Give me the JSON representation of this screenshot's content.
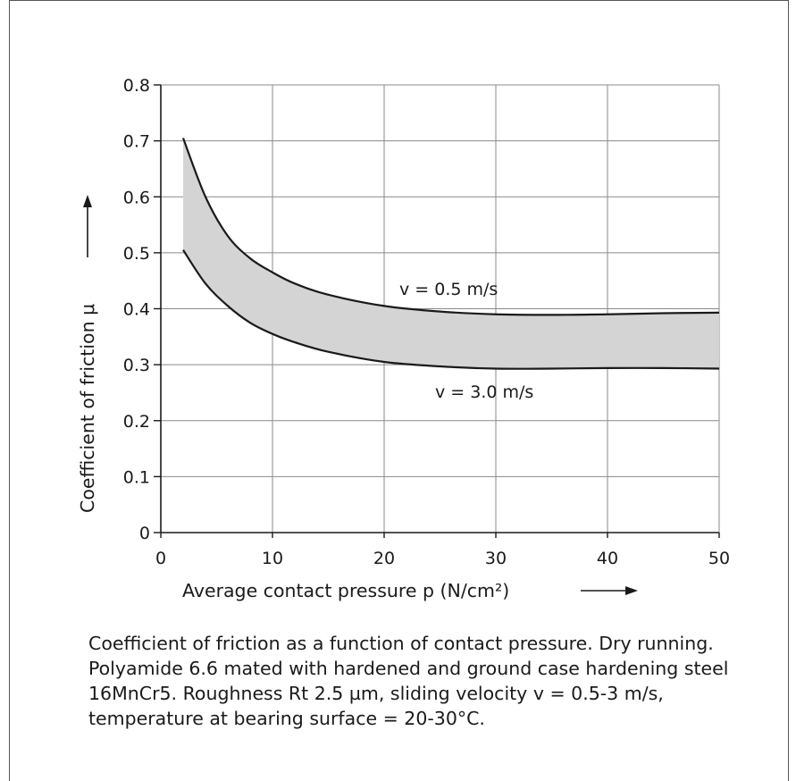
{
  "chart_data": {
    "type": "area",
    "title": "",
    "xlabel": "Average contact pressure p (N/cm²)",
    "ylabel": "Coefficient of friction μ",
    "xlim": [
      0,
      50
    ],
    "ylim": [
      0,
      0.8
    ],
    "x_ticks": [
      "0",
      "10",
      "20",
      "30",
      "40",
      "50"
    ],
    "y_ticks": [
      "0",
      "0.1",
      "0.2",
      "0.3",
      "0.4",
      "0.5",
      "0.6",
      "0.7",
      "0.8"
    ],
    "grid": true,
    "band_fill_color": "#d4d4d4",
    "series": [
      {
        "name": "v = 0.5 m/s",
        "x": [
          2,
          4,
          6,
          8,
          10,
          12,
          15,
          20,
          25,
          30,
          35,
          40,
          45,
          50
        ],
        "values": [
          0.705,
          0.6,
          0.53,
          0.49,
          0.465,
          0.445,
          0.425,
          0.405,
          0.395,
          0.39,
          0.389,
          0.39,
          0.392,
          0.393
        ]
      },
      {
        "name": "v = 3.0 m/s",
        "x": [
          2,
          4,
          6,
          8,
          10,
          12,
          15,
          20,
          25,
          30,
          35,
          40,
          45,
          50
        ],
        "values": [
          0.505,
          0.445,
          0.405,
          0.375,
          0.355,
          0.34,
          0.323,
          0.305,
          0.297,
          0.293,
          0.293,
          0.294,
          0.294,
          0.293
        ]
      }
    ]
  },
  "caption": "Coefficient of friction as a function of contact pressure. Dry running. Polyamide 6.6 mated with hardened and ground case hardening steel 16MnCr5. Roughness Rt 2.5 µm, sliding velocity v = 0.5-3 m/s, temperature at bearing surface = 20-30°C."
}
